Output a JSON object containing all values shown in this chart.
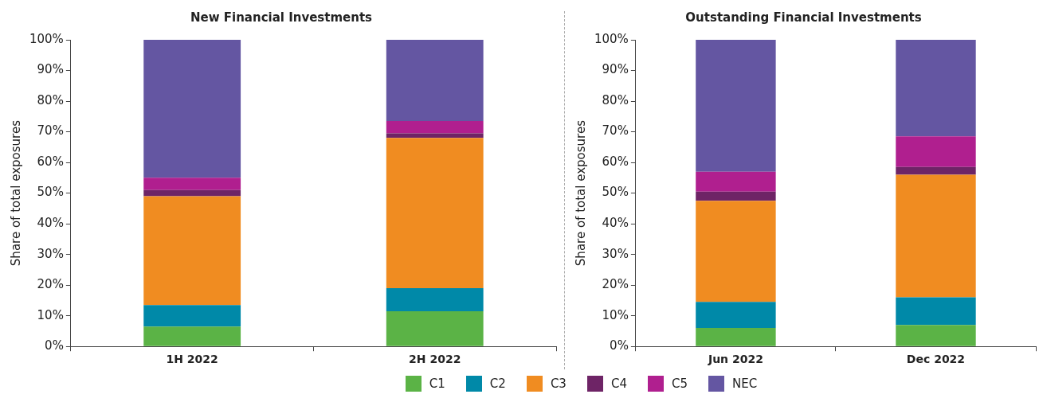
{
  "chart_data": [
    {
      "type": "bar",
      "title": "New Financial Investments",
      "ylabel": "Share of total exposures",
      "categories": [
        "1H 2022",
        "2H 2022"
      ],
      "stacked": true,
      "ylim": [
        0,
        100
      ],
      "yticks": [
        {
          "value": 0,
          "label": "0%"
        },
        {
          "value": 10,
          "label": "10%"
        },
        {
          "value": 20,
          "label": "20%"
        },
        {
          "value": 30,
          "label": "30%"
        },
        {
          "value": 40,
          "label": "40%"
        },
        {
          "value": 50,
          "label": "50%"
        },
        {
          "value": 60,
          "label": "60%"
        },
        {
          "value": 70,
          "label": "70%"
        },
        {
          "value": 80,
          "label": "80%"
        },
        {
          "value": 90,
          "label": "90%"
        },
        {
          "value": 100,
          "label": "100%"
        }
      ],
      "grid": false,
      "legend": "bottom",
      "series": [
        {
          "name": "C1",
          "color": "#5bb346",
          "values": [
            6.5,
            11.5
          ]
        },
        {
          "name": "C2",
          "color": "#0089a8",
          "values": [
            7,
            7.5
          ]
        },
        {
          "name": "C3",
          "color": "#f08c21",
          "values": [
            35.5,
            49
          ]
        },
        {
          "name": "C4",
          "color": "#6e2466",
          "values": [
            2,
            1.5
          ]
        },
        {
          "name": "C5",
          "color": "#b01f8f",
          "values": [
            4,
            4
          ]
        },
        {
          "name": "NEC",
          "color": "#6456a2",
          "values": [
            45,
            26.5
          ]
        }
      ]
    },
    {
      "type": "bar",
      "title": "Outstanding Financial Investments",
      "ylabel": "Share of total exposures",
      "categories": [
        "Jun 2022",
        "Dec 2022"
      ],
      "stacked": true,
      "ylim": [
        0,
        100
      ],
      "yticks": [
        {
          "value": 0,
          "label": "0%"
        },
        {
          "value": 10,
          "label": "10%"
        },
        {
          "value": 20,
          "label": "20%"
        },
        {
          "value": 30,
          "label": "30%"
        },
        {
          "value": 40,
          "label": "40%"
        },
        {
          "value": 50,
          "label": "50%"
        },
        {
          "value": 60,
          "label": "60%"
        },
        {
          "value": 70,
          "label": "70%"
        },
        {
          "value": 80,
          "label": "80%"
        },
        {
          "value": 90,
          "label": "90%"
        },
        {
          "value": 100,
          "label": "100%"
        }
      ],
      "grid": false,
      "legend": "bottom",
      "series": [
        {
          "name": "C1",
          "color": "#5bb346",
          "values": [
            6,
            7
          ]
        },
        {
          "name": "C2",
          "color": "#0089a8",
          "values": [
            8.5,
            9
          ]
        },
        {
          "name": "C3",
          "color": "#f08c21",
          "values": [
            33,
            40
          ]
        },
        {
          "name": "C4",
          "color": "#6e2466",
          "values": [
            3,
            2.5
          ]
        },
        {
          "name": "C5",
          "color": "#b01f8f",
          "values": [
            6.5,
            10
          ]
        },
        {
          "name": "NEC",
          "color": "#6456a2",
          "values": [
            43,
            31.5
          ]
        }
      ]
    }
  ]
}
